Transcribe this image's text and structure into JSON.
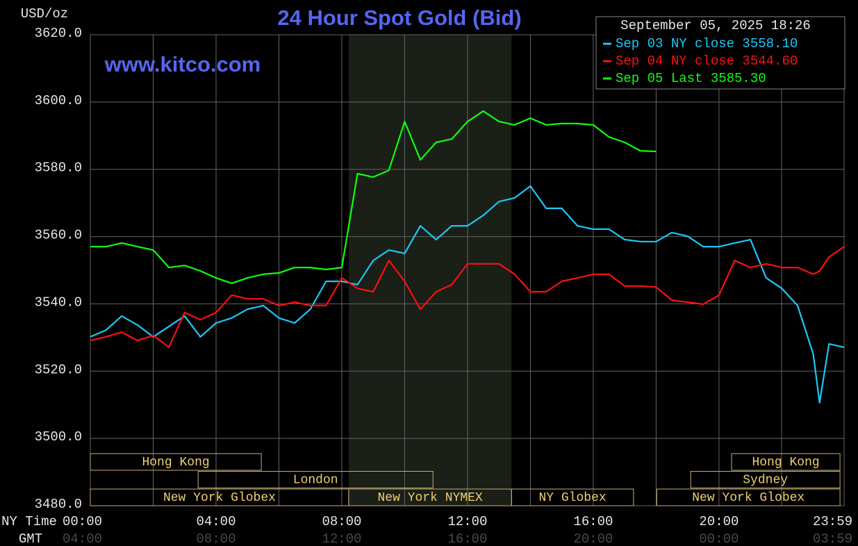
{
  "chart_data": {
    "type": "line",
    "title": "24 Hour Spot Gold (Bid)",
    "watermark": "www.kitco.com",
    "ylabel": "USD/oz",
    "timestamp": "September 05, 2025 18:26",
    "xlabel": "NY Time",
    "x2label": "GMT",
    "xlim": [
      0,
      23.98
    ],
    "xticks": [
      {
        "value": 0,
        "label": "00:00"
      },
      {
        "value": 4,
        "label": "04:00"
      },
      {
        "value": 8,
        "label": "08:00"
      },
      {
        "value": 12,
        "label": "12:00"
      },
      {
        "value": 16,
        "label": "16:00"
      },
      {
        "value": 20,
        "label": "20:00"
      },
      {
        "value": 23.98,
        "label": "23:59"
      }
    ],
    "gmt_labels": [
      "04:00",
      "08:00",
      "12:00",
      "16:00",
      "20:00",
      "00:00",
      "03:59"
    ],
    "ylim": [
      3480,
      3620
    ],
    "yticks": [
      {
        "value": 3480,
        "label": "3480.0"
      },
      {
        "value": 3500,
        "label": "3500.0"
      },
      {
        "value": 3520,
        "label": "3520.0"
      },
      {
        "value": 3540,
        "label": "3540.0"
      },
      {
        "value": 3560,
        "label": "3560.0"
      },
      {
        "value": 3580,
        "label": "3580.0"
      },
      {
        "value": 3600,
        "label": "3600.0"
      },
      {
        "value": 3620,
        "label": "3620.0"
      }
    ],
    "grid": true,
    "legend_position": "top-right",
    "x": [
      0,
      0.5,
      1,
      1.5,
      2,
      2.5,
      3,
      3.5,
      4,
      4.5,
      5,
      5.5,
      6,
      6.5,
      7,
      7.5,
      8,
      8.5,
      9,
      9.5,
      10,
      10.5,
      11,
      11.5,
      12,
      12.5,
      13,
      13.5,
      14,
      14.5,
      15,
      15.5,
      16,
      16.5,
      17,
      17.5,
      18,
      18.5,
      19,
      19.5,
      20,
      20.5,
      21,
      21.5,
      22,
      22.5,
      23,
      23.2,
      23.5,
      23.98
    ],
    "series": [
      {
        "name": "Sep 03 NY close 3558.10",
        "color": "#1ec8f5",
        "values": [
          3530.2,
          3532.2,
          3536.4,
          3533.7,
          3530.2,
          3533.3,
          3536.4,
          3530.2,
          3534.3,
          3535.8,
          3538.4,
          3539.5,
          3535.8,
          3534.3,
          3538.4,
          3546.7,
          3546.7,
          3545.7,
          3552.9,
          3556.0,
          3555.0,
          3563.2,
          3559.1,
          3563.2,
          3563.2,
          3566.3,
          3570.4,
          3571.5,
          3575.0,
          3568.4,
          3568.4,
          3563.2,
          3562.2,
          3562.2,
          3559.1,
          3558.5,
          3558.5,
          3561.2,
          3560.1,
          3557.0,
          3557.0,
          3558.1,
          3559.1,
          3547.7,
          3544.6,
          3539.5,
          3525.0,
          3510.6,
          3528.1,
          3527.1
        ]
      },
      {
        "name": "Sep 04 NY close 3544.60",
        "color": "#ff1010",
        "values": [
          3529.1,
          3530.2,
          3531.6,
          3529.1,
          3530.6,
          3527.1,
          3537.4,
          3535.3,
          3537.4,
          3542.6,
          3541.5,
          3541.5,
          3539.5,
          3540.5,
          3539.5,
          3539.5,
          3547.7,
          3544.6,
          3543.6,
          3552.9,
          3546.7,
          3538.4,
          3543.6,
          3545.7,
          3551.9,
          3551.9,
          3551.9,
          3548.8,
          3543.6,
          3543.6,
          3546.7,
          3547.7,
          3548.8,
          3548.8,
          3545.3,
          3545.3,
          3545.0,
          3541.1,
          3540.5,
          3539.9,
          3542.6,
          3552.9,
          3550.8,
          3551.9,
          3550.8,
          3550.8,
          3548.8,
          3549.8,
          3553.9,
          3557.0
        ]
      },
      {
        "name": "Sep 05 Last 3585.30",
        "color": "#10ff10",
        "values": [
          3557.0,
          3557.0,
          3558.1,
          3557.0,
          3556.0,
          3550.8,
          3551.4,
          3549.8,
          3547.7,
          3546.1,
          3547.7,
          3548.8,
          3549.2,
          3550.8,
          3550.8,
          3550.2,
          3550.8,
          3578.7,
          3577.7,
          3579.7,
          3594.2,
          3582.8,
          3588.0,
          3589.0,
          3594.2,
          3597.3,
          3594.2,
          3593.2,
          3595.2,
          3593.2,
          3593.6,
          3593.6,
          3593.2,
          3589.6,
          3588.0,
          3585.5,
          3585.3,
          null,
          null,
          null,
          null,
          null,
          null,
          null,
          null,
          null,
          null,
          null,
          null,
          null
        ]
      }
    ],
    "session_rows": [
      [
        {
          "label": "Hong Kong",
          "start": 0,
          "end": 5.44
        },
        {
          "label": "Hong Kong",
          "start": 20.4,
          "end": 23.85
        }
      ],
      [
        {
          "label": "London",
          "start": 3.43,
          "end": 10.9
        },
        {
          "label": "Sydney",
          "start": 19.1,
          "end": 23.85
        }
      ],
      [
        {
          "label": "New York Globex",
          "start": 0,
          "end": 8.22
        },
        {
          "label": "New York NYMEX",
          "start": 8.22,
          "end": 13.4,
          "shaded": true
        },
        {
          "label": "NY Globex",
          "start": 13.4,
          "end": 17.28
        },
        {
          "label": "New York Globex",
          "start": 18.02,
          "end": 23.85
        }
      ]
    ]
  }
}
